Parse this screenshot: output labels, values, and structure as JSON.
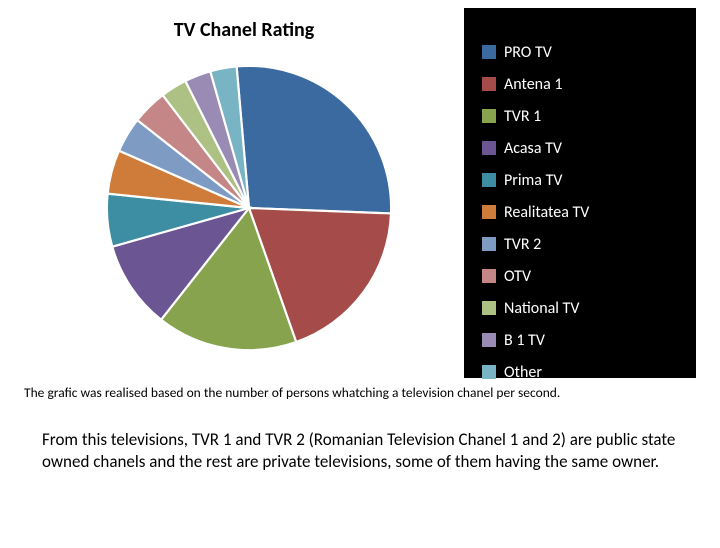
{
  "chart": {
    "type": "pie",
    "title": "TV Chanel Rating",
    "title_fontsize": 20,
    "title_fontweight": "bold",
    "panel_background": "#000000",
    "plot_background": "#ffffff",
    "pie_stroke": "#ffffff",
    "pie_stroke_width": 1.5,
    "start_angle_deg": -5,
    "direction": "clockwise",
    "slices": [
      {
        "label": "PRO TV",
        "value": 27,
        "color": "#3b6aa0"
      },
      {
        "label": "Antena 1",
        "value": 19,
        "color": "#a54b49"
      },
      {
        "label": "TVR 1",
        "value": 16,
        "color": "#87a34e"
      },
      {
        "label": "Acasa TV",
        "value": 10,
        "color": "#6b5693"
      },
      {
        "label": "Prima TV",
        "value": 6,
        "color": "#3d8da3"
      },
      {
        "label": "Realitatea TV",
        "value": 5,
        "color": "#cf7c3a"
      },
      {
        "label": "TVR 2",
        "value": 4,
        "color": "#7e9bc4"
      },
      {
        "label": "OTV",
        "value": 4,
        "color": "#c48686"
      },
      {
        "label": "National TV",
        "value": 3,
        "color": "#aec184"
      },
      {
        "label": "B 1 TV",
        "value": 3,
        "color": "#9a8bb5"
      },
      {
        "label": "Other",
        "value": 3,
        "color": "#79b4c4"
      }
    ],
    "legend": {
      "position": "right",
      "text_color": "#ffffff",
      "fontsize": 16,
      "swatch_size": 14
    }
  },
  "caption": "The grafic was realised based on the number of persons whatching a television chanel per second.",
  "body_text": "From this televisions, TVR 1 and TVR 2 (Romanian Television Chanel 1 and 2) are public state owned chanels and the rest are private televisions, some of them having the same owner."
}
